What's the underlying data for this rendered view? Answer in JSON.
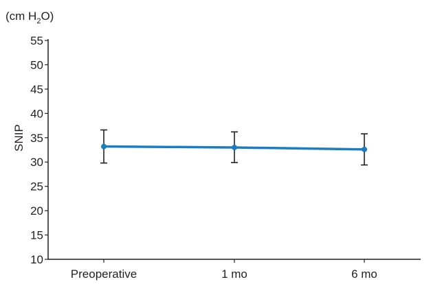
{
  "unit_label": {
    "prefix": "(cm H",
    "subscript": "2",
    "suffix": "O)"
  },
  "chart_data": {
    "type": "line",
    "title": "",
    "xlabel": "",
    "ylabel": "SNIP",
    "categories": [
      "Preoperative",
      "1 mo",
      "6 mo"
    ],
    "series": [
      {
        "values": [
          33.2,
          33.0,
          32.6
        ],
        "error_upper": [
          36.6,
          36.2,
          35.8
        ],
        "error_lower": [
          29.8,
          29.9,
          29.4
        ],
        "color": "#1a7dc4"
      }
    ],
    "ylim": [
      10,
      55
    ],
    "yticks": [
      10,
      15,
      20,
      25,
      30,
      35,
      40,
      45,
      50,
      55
    ],
    "grid": false,
    "axis_color": "#231f20",
    "errorbar_color": "#231f20"
  }
}
